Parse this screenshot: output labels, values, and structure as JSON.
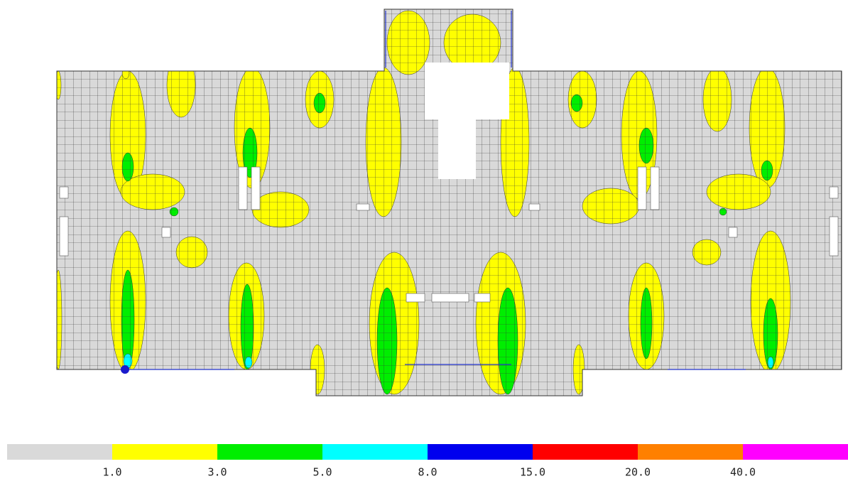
{
  "legend": {
    "colors": [
      "#d9d9d9",
      "#ffff00",
      "#00ee00",
      "#00ffff",
      "#0000ee",
      "#ff0000",
      "#ff8000",
      "#ff00ff"
    ],
    "labels": [
      "1.0",
      "3.0",
      "5.0",
      "8.0",
      "15.0",
      "20.0",
      "40.0"
    ]
  }
}
